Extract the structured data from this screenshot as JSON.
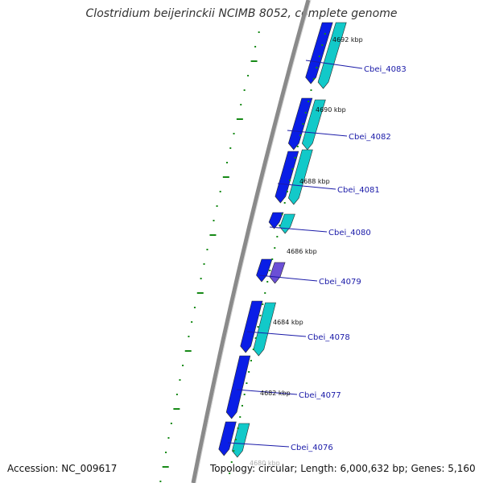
{
  "title": "Clostridium beijerinckii NCIMB 8052, complete genome",
  "accession": "Accession: NC_009617",
  "topology": "Topology: circular; Length: 6,000,632 bp; Genes: 5,160",
  "colors": {
    "backbone": "#8a8a8a",
    "forward_cds": "#0a1ee6",
    "reverse_cds": "#12c9c9",
    "tick": "#178a17",
    "callout": "#1a1aa8",
    "variant_cds": "#6b4fd6"
  },
  "kbp_labels": [
    "4692 kbp",
    "4690 kbp",
    "4688 kbp",
    "4686 kbp",
    "4684 kbp",
    "4682 kbp",
    "4680 kbp"
  ],
  "genes": [
    "Cbei_4083",
    "Cbei_4082",
    "Cbei_4081",
    "Cbei_4080",
    "Cbei_4079",
    "Cbei_4078",
    "Cbei_4077",
    "Cbei_4076"
  ]
}
